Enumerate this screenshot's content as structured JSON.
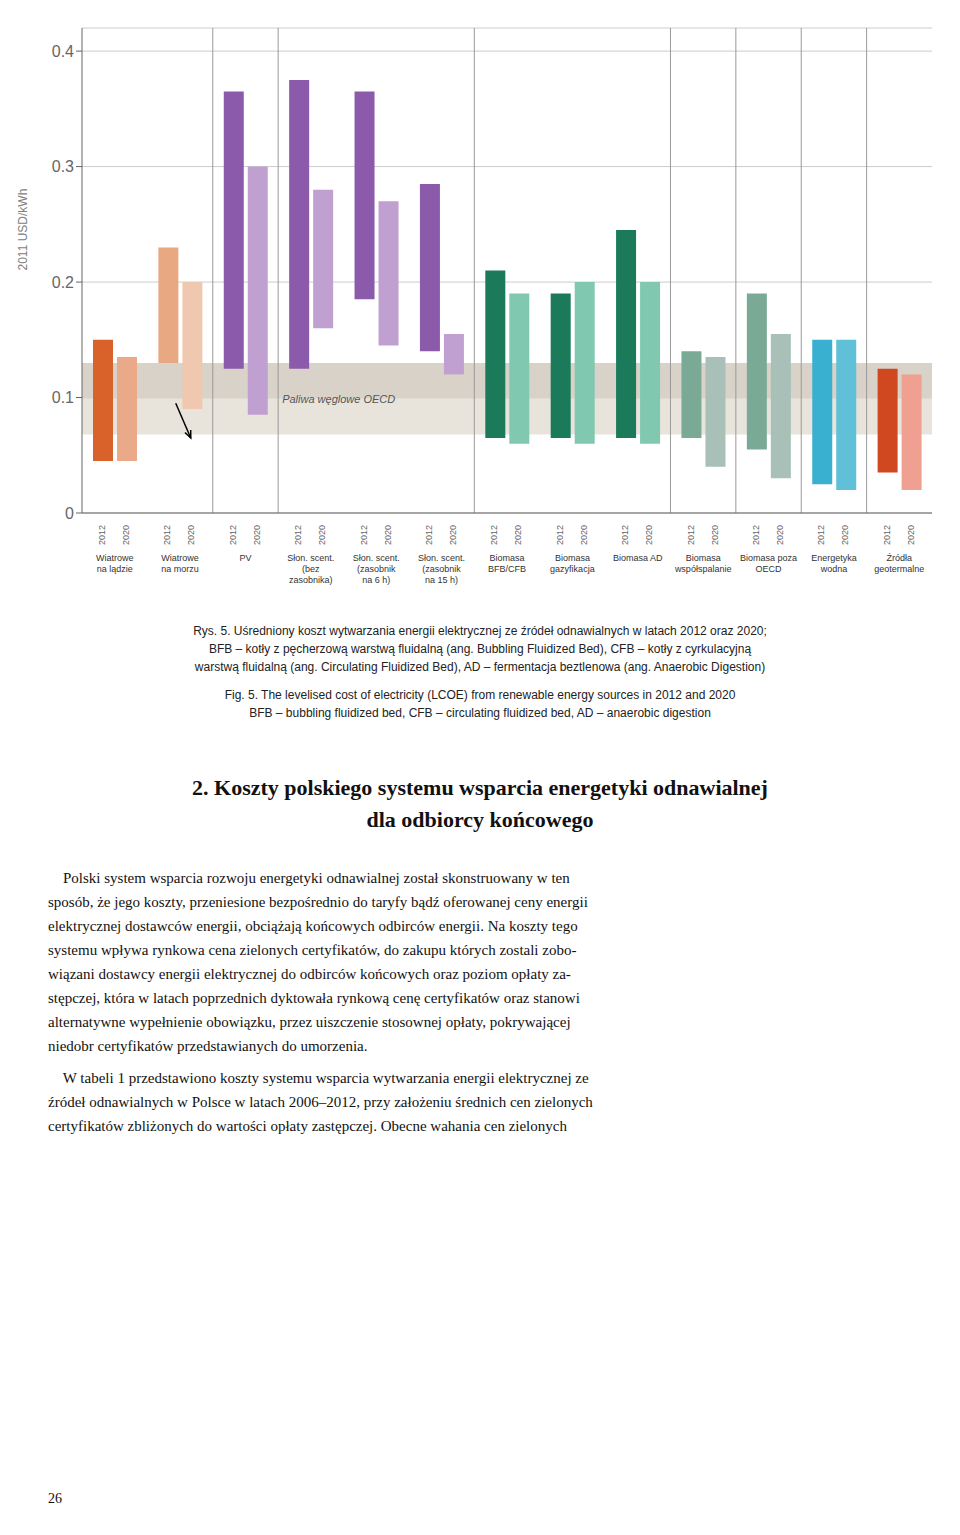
{
  "chart_data": {
    "type": "bar",
    "categories": [
      "Wiatrowe\nna lądzie",
      "Wiatrowe\nna morzu",
      "PV",
      "Słon. scent.\n(bez\nzasobnika)",
      "Słon. scent.\n(zasobnik\nna 6 h)",
      "Słon. scent.\n(zasobnik\nna 15 h)",
      "Biomasa\nBFB/CFB",
      "Biomasa\ngazyfikacja",
      "Biomasa AD",
      "Biomasa\nwspółspalanie",
      "Biomasa poza\nOECD",
      "Energetyka\nwodna",
      "Źródła\ngeotermalne"
    ],
    "series": [
      {
        "name": "2012",
        "values": [
          [
            0.045,
            0.15
          ],
          [
            0.13,
            0.23
          ],
          [
            0.125,
            0.365
          ],
          [
            0.125,
            0.375
          ],
          [
            0.185,
            0.365
          ],
          [
            0.14,
            0.285
          ],
          [
            0.065,
            0.21
          ],
          [
            0.065,
            0.19
          ],
          [
            0.065,
            0.245
          ],
          [
            0.065,
            0.14
          ],
          [
            0.055,
            0.19
          ],
          [
            0.025,
            0.15
          ],
          [
            0.035,
            0.125
          ]
        ],
        "colors": [
          "#d9622b",
          "#e8a882",
          "#8b5aaa",
          "#8b5aaa",
          "#8b5aaa",
          "#8b5aaa",
          "#1a7a5a",
          "#1a7a5a",
          "#1a7a5a",
          "#7aaa96",
          "#7aaa96",
          "#3ab0d0",
          "#d04820"
        ]
      },
      {
        "name": "2020",
        "values": [
          [
            0.045,
            0.135
          ],
          [
            0.09,
            0.2
          ],
          [
            0.085,
            0.3
          ],
          [
            0.16,
            0.28
          ],
          [
            0.145,
            0.27
          ],
          [
            0.12,
            0.155
          ],
          [
            0.06,
            0.19
          ],
          [
            0.06,
            0.2
          ],
          [
            0.06,
            0.2
          ],
          [
            0.04,
            0.135
          ],
          [
            0.03,
            0.155
          ],
          [
            0.02,
            0.15
          ],
          [
            0.02,
            0.12
          ]
        ],
        "colors": [
          "#eaaa8a",
          "#f0c8b0",
          "#c0a0d0",
          "#c0a0d0",
          "#c0a0d0",
          "#c0a0d0",
          "#80c8b0",
          "#80c8b0",
          "#80c8b0",
          "#a8c0b8",
          "#a8c0b8",
          "#60c0d8",
          "#f0a090"
        ]
      }
    ],
    "ylabel": "2011 USD/kWh",
    "ylim": [
      0,
      0.42
    ],
    "yticks": [
      0,
      0.1,
      0.2,
      0.3,
      0.4
    ],
    "grid": true,
    "bands": [
      {
        "label": "Paliwa węglowe OECD",
        "y_from": 0.068,
        "y_to": 0.13,
        "colors": [
          "#e8e4dc",
          "#d8d2c8"
        ]
      }
    ],
    "annotations": [
      {
        "type": "arrow",
        "series": "2020",
        "category": "Wiatrowe\nna morzu",
        "y_from": 0.095,
        "y_to": 0.065
      }
    ]
  },
  "caption": [
    "Rys. 5. Uśredniony koszt wytwarzania energii elektrycznej ze źródeł odnawialnych w latach 2012 oraz 2020;",
    "BFB – kotły z pęcherzową warstwą fluidalną (ang. Bubbling Fluidized Bed), CFB – kotły z cyrkulacyjną",
    "warstwą fluidalną (ang. Circulating Fluidized Bed), AD – fermentacja beztlenowa (ang. Anaerobic Digestion)",
    "Fig. 5. The levelised cost of electricity (LCOE) from renewable energy sources in 2012 and 2020",
    "BFB – bubbling fluidized bed, CFB – circulating fluidized bed, AD – anaerobic digestion"
  ],
  "section_title": [
    "2. Koszty polskiego systemu wsparcia energetyki odnawialnej",
    "dla odbiorcy końcowego"
  ],
  "body": [
    [
      "    Polski system wsparcia rozwoju energetyki odnawialnej został skonstruowany w ten",
      "sposób, że jego koszty, przeniesione bezpośrednio do taryfy bądź oferowanej ceny energii",
      "elektrycznej dostawców energii, obciążają końcowych odbirców energii. Na koszty tego",
      "systemu wpływa rynkowa cena zielonych certyfikatów, do zakupu których zostali zobo-",
      "wiązani dostawcy energii elektrycznej do odbirców końcowych oraz poziom opłaty za-",
      "stępczej, która w latach poprzednich dyktowała rynkową cenę certyfikatów oraz stanowi",
      "alternatywne wypełnienie obowiązku, przez uiszczenie stosownej opłaty, pokrywającej",
      "niedobr certyfikatów przedstawianych do umorzenia."
    ],
    [
      "    W tabeli 1 przedstawiono koszty systemu wsparcia wytwarzania energii elektrycznej ze",
      "źródeł odnawialnych w Polsce w latach 2006–2012, przy założeniu średnich cen zielonych",
      "certyfikatów zbliżonych do wartości opłaty zastępczej. Obecne wahania cen zielonych"
    ]
  ],
  "page_number": "26"
}
